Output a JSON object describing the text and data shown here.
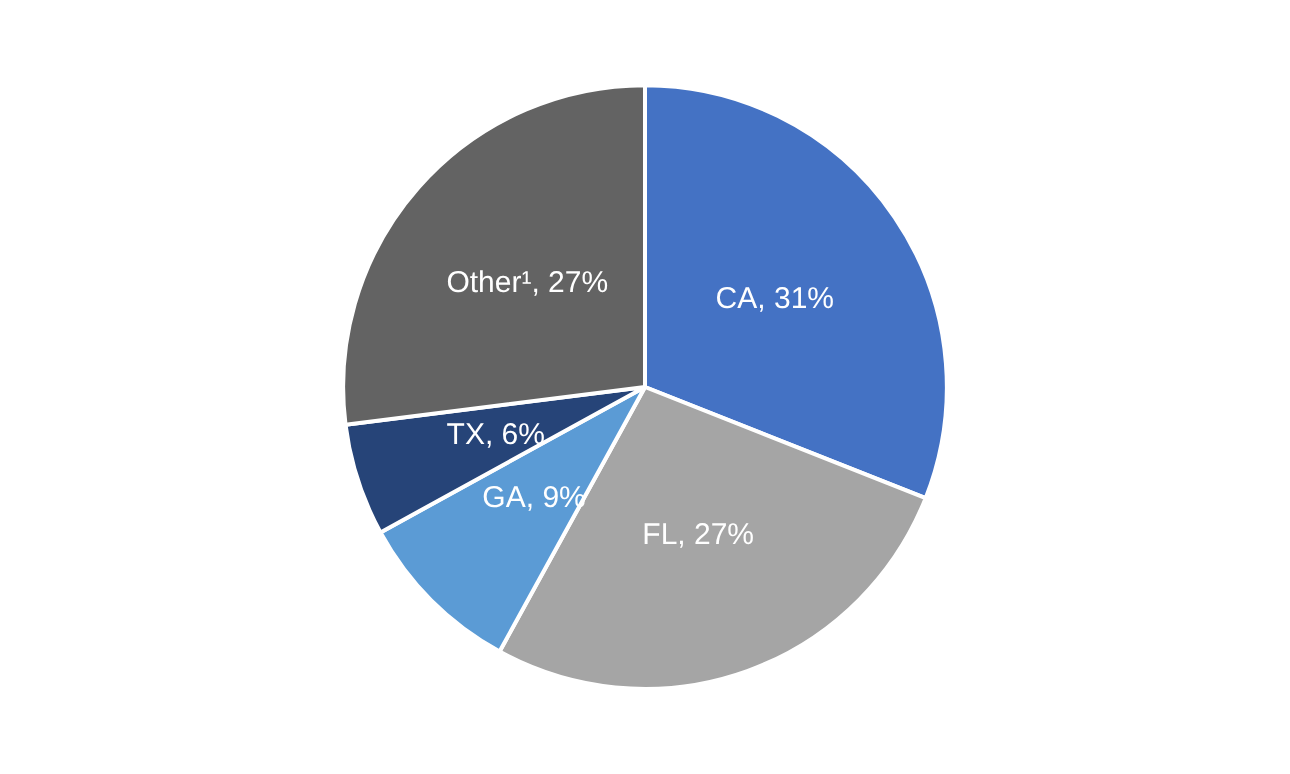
{
  "chart_data": {
    "type": "pie",
    "categories": [
      "CA",
      "FL",
      "GA",
      "TX",
      "Other¹"
    ],
    "values": [
      31,
      27,
      9,
      6,
      27
    ],
    "value_labels": [
      ", 31%",
      ", 27%",
      ", 9%",
      ", 6%",
      ", 27%"
    ],
    "colors": [
      "#4472c4",
      "#a5a5a5",
      "#5b9bd5",
      "#264478",
      "#636363"
    ],
    "legend": false
  }
}
